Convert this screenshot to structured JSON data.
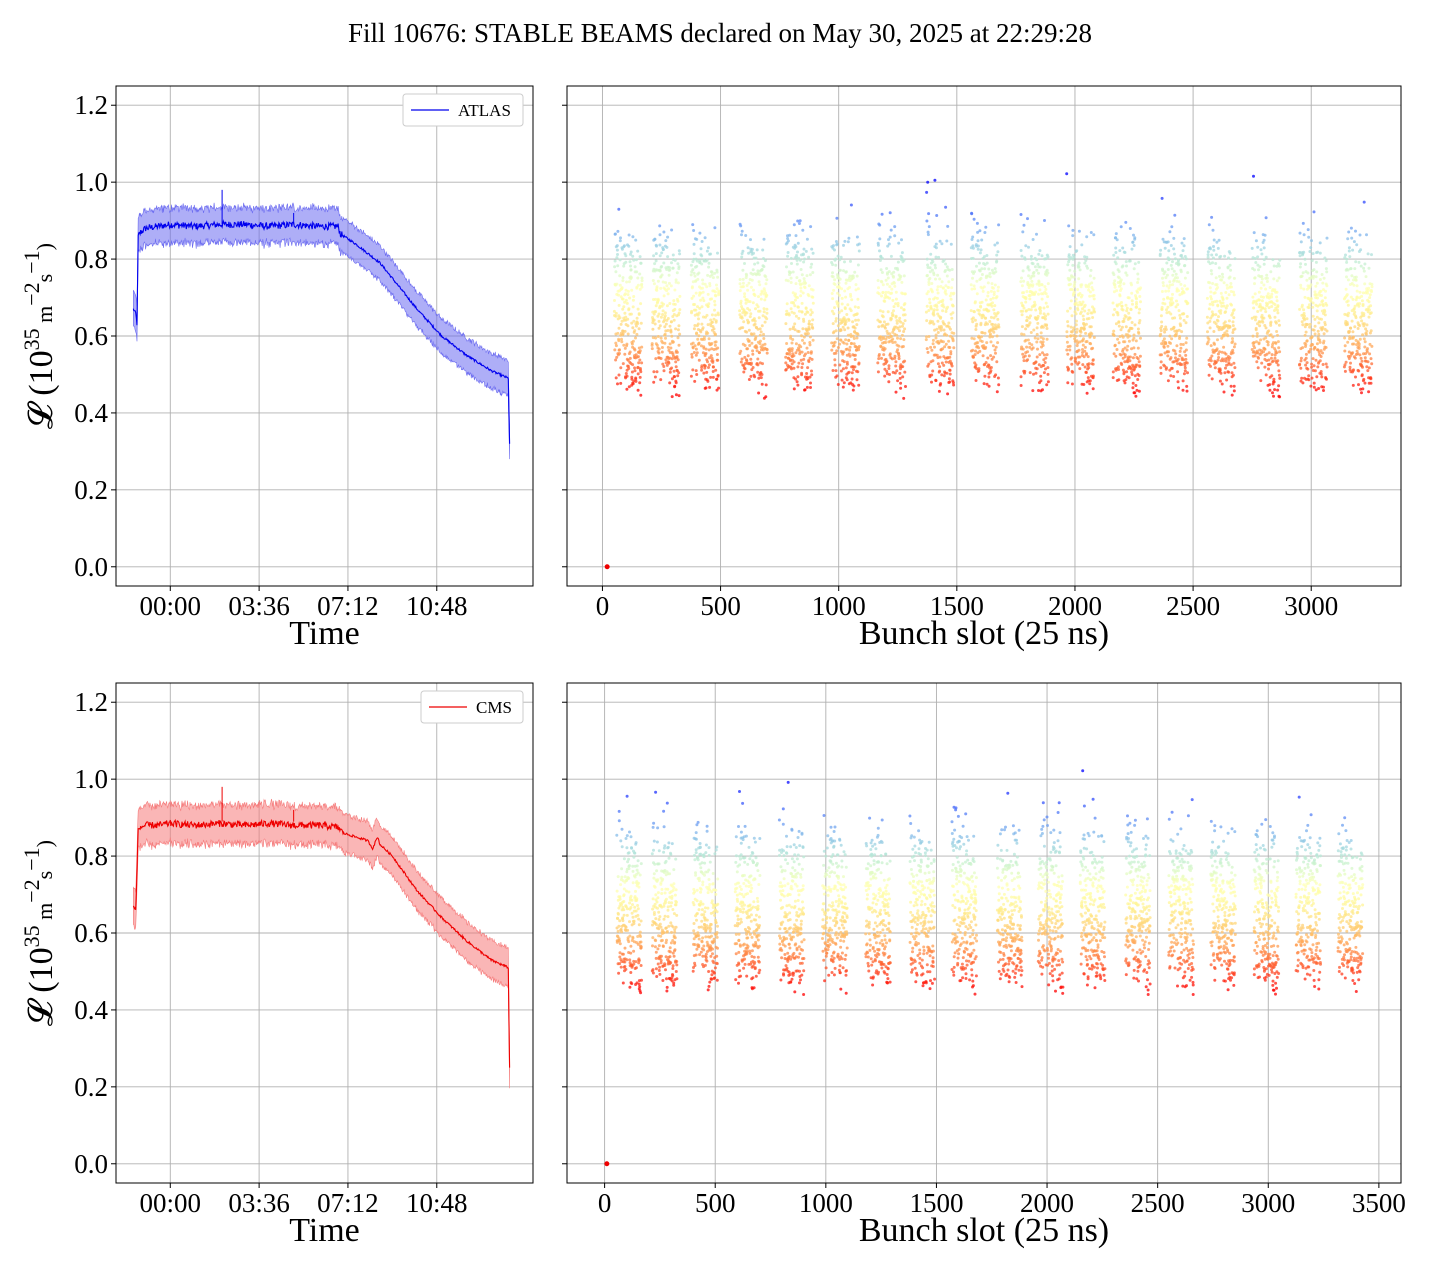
{
  "figure": {
    "title": "Fill 10676: STABLE BEAMS declared on May 30, 2025 at 22:29:28"
  },
  "chart_data": [
    {
      "id": "atlas-time",
      "type": "line",
      "legend": "ATLAS",
      "legend_position": "top-right",
      "color": "#0000ee",
      "band_color": "#6b6bf0",
      "xlabel": "Time",
      "ylabel": "𝓛 (10^35 m^-2 s^-1)",
      "ylabel_parts": {
        "prefix": "𝓛 (10",
        "exp1": "35",
        "mid": " m",
        "exp2": "−2",
        "mid2": "s",
        "exp3": "−1",
        "suffix": ")"
      },
      "xlim_hours": [
        -2.2,
        14.7
      ],
      "ylim": [
        -0.05,
        1.25
      ],
      "x_ticks": [
        {
          "value": 0,
          "label": "00:00"
        },
        {
          "value": 3.6,
          "label": "03:36"
        },
        {
          "value": 7.2,
          "label": "07:12"
        },
        {
          "value": 10.8,
          "label": "10:48"
        }
      ],
      "y_ticks": [
        {
          "value": 0.0,
          "label": "0.0"
        },
        {
          "value": 0.2,
          "label": "0.2"
        },
        {
          "value": 0.4,
          "label": "0.4"
        },
        {
          "value": 0.6,
          "label": "0.6"
        },
        {
          "value": 0.8,
          "label": "0.8"
        },
        {
          "value": 1.0,
          "label": "1.0"
        },
        {
          "value": 1.2,
          "label": "1.2"
        }
      ],
      "grid": true,
      "series": [
        {
          "x_hours": [
            -1.5,
            -1.4,
            -1.35,
            -1.3,
            -1.2,
            -1.0,
            -0.5,
            0,
            1,
            2,
            3,
            4,
            5,
            6,
            6.8,
            6.9,
            7.5,
            8.0,
            8.5,
            9.0,
            10,
            11,
            12,
            13,
            13.7,
            13.75
          ],
          "values": [
            0.67,
            0.66,
            0.63,
            0.86,
            0.87,
            0.88,
            0.885,
            0.89,
            0.885,
            0.89,
            0.89,
            0.885,
            0.89,
            0.885,
            0.885,
            0.865,
            0.84,
            0.815,
            0.79,
            0.75,
            0.67,
            0.6,
            0.55,
            0.51,
            0.49,
            0.32
          ]
        }
      ],
      "band_halfwidth": 0.045
    },
    {
      "id": "atlas-bunch",
      "type": "scatter",
      "xlabel": "Bunch slot (25 ns)",
      "xlim": [
        -150,
        3380
      ],
      "ylim": [
        -0.05,
        1.25
      ],
      "x_ticks": [
        {
          "value": 0,
          "label": "0"
        },
        {
          "value": 500,
          "label": "500"
        },
        {
          "value": 1000,
          "label": "1000"
        },
        {
          "value": 1500,
          "label": "1500"
        },
        {
          "value": 2000,
          "label": "2000"
        },
        {
          "value": 2500,
          "label": "2500"
        },
        {
          "value": 3000,
          "label": "3000"
        }
      ],
      "y_ticks": [
        0.0,
        0.2,
        0.4,
        0.6,
        0.8,
        1.0,
        1.2
      ],
      "grid": true,
      "colormap": "rainbow",
      "trains_start": [
        50,
        210,
        375,
        580,
        775,
        970,
        1165,
        1370,
        1560,
        1770,
        1965,
        2160,
        2360,
        2560,
        2750,
        2950,
        3140
      ],
      "train_length": 118,
      "value_range": [
        0.42,
        1.14
      ],
      "outlier": {
        "x": 20,
        "value": 0.0
      }
    },
    {
      "id": "cms-time",
      "type": "line",
      "legend": "CMS",
      "legend_position": "top-right",
      "color": "#ee0000",
      "band_color": "#f57a7a",
      "xlabel": "Time",
      "ylabel": "𝓛 (10^35 m^-2 s^-1)",
      "xlim_hours": [
        -2.2,
        14.7
      ],
      "ylim": [
        -0.05,
        1.25
      ],
      "x_ticks": [
        {
          "value": 0,
          "label": "00:00"
        },
        {
          "value": 3.6,
          "label": "03:36"
        },
        {
          "value": 7.2,
          "label": "07:12"
        },
        {
          "value": 10.8,
          "label": "10:48"
        }
      ],
      "y_ticks": [
        {
          "value": 0.0,
          "label": "0.0"
        },
        {
          "value": 0.2,
          "label": "0.2"
        },
        {
          "value": 0.4,
          "label": "0.4"
        },
        {
          "value": 0.6,
          "label": "0.6"
        },
        {
          "value": 0.8,
          "label": "0.8"
        },
        {
          "value": 1.0,
          "label": "1.0"
        },
        {
          "value": 1.2,
          "label": "1.2"
        }
      ],
      "grid": true,
      "series": [
        {
          "x_hours": [
            -1.5,
            -1.4,
            -1.3,
            -1.2,
            -1.0,
            -0.5,
            0,
            1,
            2,
            3,
            4,
            5,
            6,
            6.8,
            7.0,
            7.5,
            8.0,
            8.2,
            8.4,
            8.5,
            9.0,
            10,
            11,
            12,
            13,
            13.7,
            13.75
          ],
          "values": [
            0.67,
            0.66,
            0.87,
            0.875,
            0.88,
            0.88,
            0.885,
            0.88,
            0.885,
            0.88,
            0.885,
            0.88,
            0.88,
            0.875,
            0.86,
            0.85,
            0.84,
            0.82,
            0.85,
            0.83,
            0.8,
            0.71,
            0.64,
            0.58,
            0.53,
            0.51,
            0.25
          ]
        }
      ],
      "band_halfwidth": 0.05
    },
    {
      "id": "cms-bunch",
      "type": "scatter",
      "xlabel": "Bunch slot (25 ns)",
      "xlim": [
        -170,
        3600
      ],
      "ylim": [
        -0.05,
        1.25
      ],
      "x_ticks": [
        {
          "value": 0,
          "label": "0"
        },
        {
          "value": 500,
          "label": "500"
        },
        {
          "value": 1000,
          "label": "1000"
        },
        {
          "value": 1500,
          "label": "1500"
        },
        {
          "value": 2000,
          "label": "2000"
        },
        {
          "value": 2500,
          "label": "2500"
        },
        {
          "value": 3000,
          "label": "3000"
        },
        {
          "value": 3500,
          "label": "3500"
        }
      ],
      "y_ticks": [
        0.0,
        0.2,
        0.4,
        0.6,
        0.8,
        1.0,
        1.2
      ],
      "grid": true,
      "colormap": "rainbow",
      "trains_start": [
        55,
        215,
        400,
        590,
        790,
        985,
        1180,
        1380,
        1570,
        1775,
        1960,
        2150,
        2355,
        2550,
        2740,
        2935,
        3125,
        3315
      ],
      "train_length": 112,
      "value_range": [
        0.44,
        1.19
      ],
      "outlier": {
        "x": 10,
        "value": 0.0
      }
    }
  ]
}
